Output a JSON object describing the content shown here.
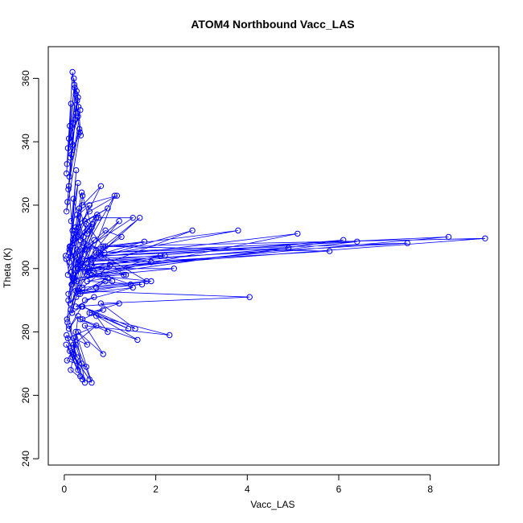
{
  "chart_data": {
    "type": "line",
    "title": "ATOM4 Northbound Vacc_LAS",
    "xlabel": "Vacc_LAS",
    "ylabel": "Theta (K)",
    "xlim": [
      -0.35,
      9.5
    ],
    "ylim": [
      238,
      370
    ],
    "xticks": [
      0,
      2,
      4,
      6,
      8
    ],
    "yticks": [
      240,
      260,
      280,
      300,
      320,
      340,
      360
    ],
    "grid": false,
    "legend": "none",
    "series": [
      {
        "color": "#0000ff",
        "marker": "open-circle",
        "x": [
          0.12,
          0.08,
          0.15,
          0.05,
          0.22,
          0.1,
          0.3,
          0.18,
          0.06,
          0.25,
          0.14,
          0.35,
          0.09,
          0.2,
          0.28,
          0.07,
          0.16,
          0.33,
          0.11,
          0.24,
          0.21,
          0.27,
          0.31,
          0.36,
          0.19,
          0.13,
          0.26,
          0.3,
          0.23,
          0.34,
          0.05,
          0.1,
          0.18,
          0.26,
          0.12,
          0.2,
          0.42,
          0.08,
          0.3,
          0.15,
          0.55,
          0.22,
          0.11,
          0.38,
          0.6,
          0.17,
          0.28,
          0.45,
          0.09,
          0.33,
          0.5,
          0.14,
          0.7,
          0.25,
          0.4,
          0.06,
          0.65,
          0.2,
          0.48,
          0.85,
          0.3,
          1.1,
          0.16,
          0.75,
          1.5,
          0.24,
          0.9,
          1.25,
          0.35,
          1.65,
          0.18,
          1.2,
          0.5,
          3.8,
          0.4,
          5.1,
          0.6,
          6.1,
          0.3,
          7.5,
          0.7,
          8.4,
          0.5,
          9.2,
          0.9,
          5.8,
          0.35,
          4.9,
          0.8,
          6.4,
          0.45,
          2.8,
          0.6,
          1.9,
          0.28,
          2.1,
          0.55,
          2.4,
          0.2,
          1.3,
          0.75,
          1.8,
          0.4,
          1.0,
          0.65,
          1.45,
          0.3,
          0.95,
          0.5,
          1.7,
          0.25,
          4.05,
          0.8,
          1.55,
          0.4,
          1.4,
          0.6,
          1.6,
          0.35,
          0.95,
          0.7,
          2.3,
          0.45,
          0.85,
          0.3,
          0.5,
          0.2,
          0.38,
          0.15,
          0.28,
          0.1,
          0.6,
          0.25,
          0.45,
          0.08,
          0.7,
          0.2,
          0.3,
          0.12,
          0.55,
          0.04,
          0.35,
          0.18,
          0.48,
          0.06,
          0.25,
          0.14,
          0.4,
          0.05,
          0.2,
          0.3,
          0.1,
          0.38,
          0.17,
          0.26,
          0.07,
          0.33,
          0.13,
          0.22,
          0.09,
          0.29,
          0.16,
          0.04,
          0.21,
          0.11,
          0.35,
          0.19,
          0.03,
          0.24,
          0.14,
          0.8,
          0.4,
          1.15,
          0.55,
          0.25,
          0.95,
          0.45,
          0.3,
          0.72,
          0.5,
          0.12,
          0.62,
          0.35,
          0.88,
          0.2,
          0.58,
          0.42,
          0.15,
          0.52,
          0.28,
          1.75,
          0.4,
          2.2,
          0.6,
          1.35,
          0.3,
          1.05,
          0.5,
          1.9,
          0.7,
          0.9,
          0.35,
          1.5,
          0.45,
          0.65,
          0.25,
          1.2,
          0.55,
          0.85,
          0.4
        ],
        "y": [
          345,
          338,
          352,
          330,
          358,
          341,
          348,
          362,
          333,
          355,
          340,
          350,
          325,
          346,
          353,
          321,
          336,
          344,
          329,
          347,
          360,
          356,
          351,
          342,
          339,
          335,
          349,
          354,
          357,
          343,
          318,
          326,
          312,
          331,
          305,
          322,
          310,
          298,
          327,
          315,
          320,
          308,
          302,
          324,
          313,
          295,
          317,
          306,
          290,
          319,
          311,
          287,
          316,
          300,
          323,
          284,
          309,
          296,
          314,
          307,
          293,
          323,
          299,
          316,
          316,
          304,
          312,
          310,
          301,
          316,
          297,
          315,
          306,
          312,
          303,
          311,
          298,
          309,
          302,
          308,
          305,
          310,
          300,
          309.5,
          307,
          305.5,
          301,
          306.5,
          304,
          308.5,
          299,
          312,
          303,
          302,
          296,
          304,
          300,
          300,
          297,
          298,
          305,
          296,
          294,
          301,
          299,
          295,
          292,
          297,
          296,
          295,
          293,
          291,
          289,
          281,
          288,
          281,
          286,
          277.5,
          284,
          280,
          285,
          279,
          282,
          273,
          280,
          276,
          278,
          270,
          275,
          272,
          282,
          264,
          280,
          264,
          278,
          282,
          276,
          268,
          274,
          265,
          276,
          266,
          272,
          269,
          271,
          276,
          268,
          265,
          279,
          273,
          285,
          281,
          288,
          286,
          291,
          283,
          294,
          289,
          297,
          292,
          300,
          295,
          303,
          298,
          306,
          301,
          309,
          304,
          312,
          307,
          326,
          320,
          323,
          318,
          313,
          319,
          315,
          310,
          317,
          312,
          307,
          314,
          309,
          305,
          311,
          302,
          308,
          304,
          299,
          306,
          308.5,
          303,
          304,
          301,
          298,
          300,
          296,
          298,
          296,
          294,
          296,
          292,
          294,
          290,
          291,
          288,
          289,
          286,
          287,
          284
        ]
      }
    ]
  }
}
